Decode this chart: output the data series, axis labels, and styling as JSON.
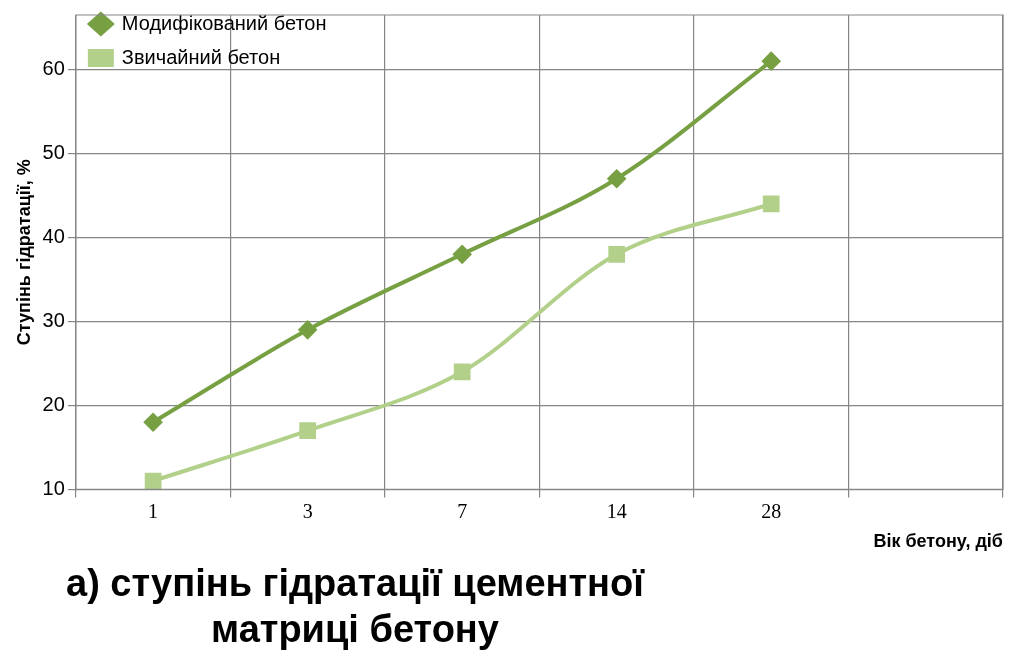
{
  "chart_data": {
    "type": "line",
    "title": "а) ступінь гідратації цементної матриці бетону",
    "xlabel": "Вік бетону, діб",
    "ylabel": "Ступінь гідратації, %",
    "categories": [
      "1",
      "3",
      "7",
      "14",
      "28",
      null
    ],
    "series": [
      {
        "name": "Модифікований бетон",
        "color": "#77a043",
        "marker": "diamond",
        "values": [
          18,
          29,
          38,
          47,
          61,
          null
        ]
      },
      {
        "name": "Звичайний бетон",
        "color": "#b3d08a",
        "marker": "square",
        "values": [
          11,
          17,
          24,
          38,
          44,
          null
        ]
      }
    ],
    "ylim": [
      10,
      66.5
    ],
    "yticks": [
      10,
      20,
      30,
      40,
      50,
      60
    ],
    "grid": true,
    "legend": "top left"
  }
}
